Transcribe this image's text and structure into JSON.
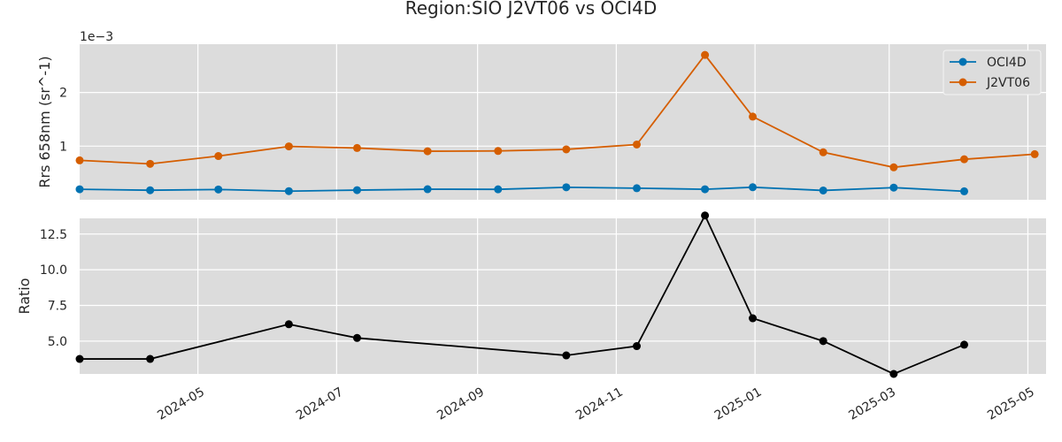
{
  "chart_data": {
    "type": "line",
    "title": "Region:SIO J2VT06 vs OCI4D",
    "x": [
      "2024-03-10",
      "2024-04-10",
      "2024-05-10",
      "2024-06-10",
      "2024-07-10",
      "2024-08-10",
      "2024-09-10",
      "2024-10-10",
      "2024-11-10",
      "2024-12-10",
      "2024-12-31",
      "2025-01-31",
      "2025-03-03",
      "2025-04-03",
      "2025-05-04"
    ],
    "xlim": [
      "2024-03-10",
      "2025-05-09"
    ],
    "xticks": [
      "2024-05-01",
      "2024-07-01",
      "2024-09-01",
      "2024-11-01",
      "2025-01-01",
      "2025-03-01",
      "2025-05-01"
    ],
    "xtick_labels": [
      "2024-05",
      "2024-07",
      "2024-09",
      "2024-11",
      "2025-01",
      "2025-03",
      "2025-05"
    ],
    "top_panel": {
      "ylabel": "Rrs 658nm (sr^-1)",
      "offset_label": "1e−3",
      "scale": 0.001,
      "ylim": [
        0.0,
        0.0029
      ],
      "yticks": [
        0.001,
        0.002
      ],
      "ytick_labels": [
        "1",
        "2"
      ],
      "legend_position": "top-right",
      "series": [
        {
          "name": "OCI4D",
          "color": "#0072b2",
          "values": [
            0.000196,
            0.000178,
            0.000192,
            0.000161,
            0.00018,
            0.000197,
            0.000195,
            0.000233,
            0.000216,
            0.000196,
            0.000234,
            0.000174,
            0.000227,
            0.000158,
            null
          ]
        },
        {
          "name": "J2VT06",
          "color": "#d55e00",
          "values": [
            0.000735,
            0.00067,
            0.000815,
            0.000995,
            0.000965,
            0.000905,
            0.00091,
            0.00094,
            0.00103,
            0.0027,
            0.00155,
            0.000885,
            0.000605,
            0.000755,
            0.00085
          ]
        }
      ]
    },
    "bottom_panel": {
      "ylabel": "Ratio",
      "ylim": [
        2.7,
        13.6
      ],
      "yticks": [
        5.0,
        7.5,
        10.0,
        12.5
      ],
      "ytick_labels": [
        "5.0",
        "7.5",
        "10.0",
        "12.5"
      ],
      "series": [
        {
          "name": "Ratio",
          "color": "#000000",
          "values": [
            3.75,
            3.75,
            null,
            6.18,
            5.22,
            null,
            null,
            4.0,
            4.65,
            13.8,
            6.6,
            5.0,
            2.7,
            4.75,
            null
          ]
        }
      ]
    },
    "grid": true
  }
}
